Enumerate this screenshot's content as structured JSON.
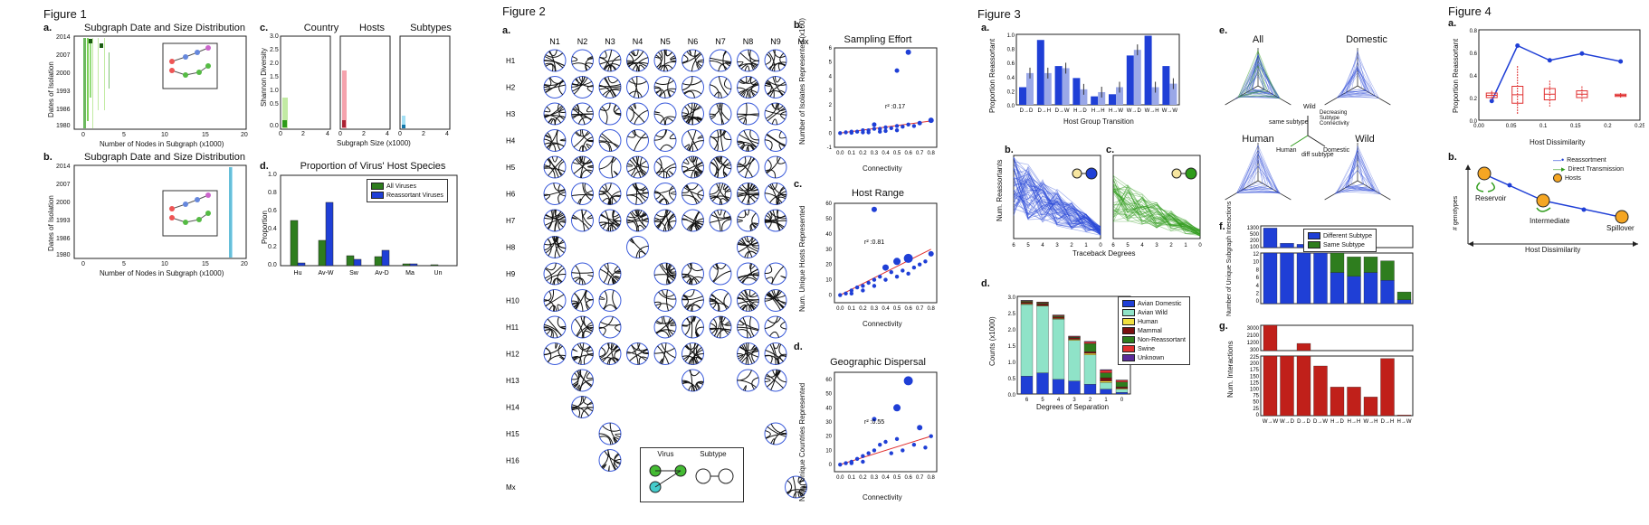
{
  "figures": {
    "f1": "Figure 1",
    "f2": "Figure 2",
    "f3": "Figure 3",
    "f4": "Figure 4"
  },
  "fig1": {
    "a": {
      "label": "a.",
      "title": "Subgraph Date and Size Distribution",
      "ylabel": "Dates of Isolation",
      "xlabel": "Number of Nodes in Subgraph (x1000)",
      "yticks": [
        "2014",
        "2007",
        "2000",
        "1993",
        "1986",
        "1980"
      ],
      "xticks": [
        "0",
        "5",
        "10",
        "15",
        "20"
      ]
    },
    "b": {
      "label": "b.",
      "title": "Subgraph Date and Size Distribution",
      "ylabel": "Dates of Isolation",
      "xlabel": "Number of Nodes in Subgraph (x1000)",
      "yticks": [
        "2014",
        "2007",
        "2000",
        "1993",
        "1986",
        "1980"
      ],
      "xticks": [
        "0",
        "5",
        "10",
        "15",
        "20"
      ]
    },
    "c": {
      "label": "c.",
      "titles": [
        "Country",
        "Hosts",
        "Subtypes"
      ],
      "ylabel": "Shannon Diversity",
      "xlabel": "Subgraph Size (x1000)",
      "yticks": [
        "3.0",
        "2.5",
        "2.0",
        "1.5",
        "1.0",
        "0.5",
        "0.0"
      ],
      "xticks": [
        "0",
        "2",
        "4"
      ]
    },
    "d": {
      "label": "d.",
      "title": "Proportion of Virus' Host Species",
      "ylabel": "Proportion",
      "yticks": [
        "1.0",
        "0.8",
        "0.6",
        "0.4",
        "0.2",
        "0.0"
      ],
      "legend": [
        "All Viruses",
        "Reassortant Viruses"
      ]
    }
  },
  "fig2": {
    "a": {
      "label": "a.",
      "cols": [
        "N1",
        "N2",
        "N3",
        "N4",
        "N5",
        "N6",
        "N7",
        "N8",
        "N9",
        "Mx"
      ],
      "rows": [
        "H1",
        "H2",
        "H3",
        "H4",
        "H5",
        "H6",
        "H7",
        "H8",
        "H9",
        "H10",
        "H11",
        "H12",
        "H13",
        "H14",
        "H15",
        "H16",
        "Mx"
      ],
      "legend": {
        "virus": "Virus",
        "subtype": "Subtype"
      }
    },
    "b": {
      "label": "b.",
      "title": "Sampling Effort",
      "ylabel": "Number of Isolates Represented (x100)",
      "xlabel": "Connectivity",
      "r2": "r² :0.17",
      "yticks": [
        "6",
        "5",
        "4",
        "3",
        "2",
        "1",
        "0",
        "-1"
      ]
    },
    "c": {
      "label": "c.",
      "title": "Host Range",
      "ylabel": "Num. Unique Hosts Represented",
      "xlabel": "Connectivity",
      "r2": "r² :0.81"
    },
    "d": {
      "label": "d.",
      "title": "Geographic Dispersal",
      "ylabel": "Num. Unique Countries Represented",
      "xlabel": "Connectivity",
      "r2": "r² :0.55"
    },
    "xticks": [
      "0.0",
      "0.1",
      "0.2",
      "0.3",
      "0.4",
      "0.5",
      "0.6",
      "0.7",
      "0.8"
    ]
  },
  "fig3": {
    "a": {
      "label": "a.",
      "ylabel": "Proportion Reassortant",
      "xlabel": "Host Group Transition",
      "yticks": [
        "1.0",
        "0.8",
        "0.6",
        "0.4",
        "0.2",
        "0.0"
      ],
      "cats": [
        "D→D",
        "D→H",
        "D→W",
        "H→D",
        "H→H",
        "H→W",
        "W→D",
        "W→H",
        "W→W"
      ]
    },
    "b": {
      "label": "b.",
      "ylabel": "Num. Reassortants",
      "xticks": [
        "6",
        "5",
        "4",
        "3",
        "2",
        "1",
        "0"
      ]
    },
    "c": {
      "label": "c.",
      "xticks": [
        "6",
        "5",
        "4",
        "3",
        "2",
        "1",
        "0"
      ]
    },
    "bc_xlabel": "Traceback Degrees",
    "d": {
      "label": "d.",
      "ylabel": "Counts (x1000)",
      "xlabel": "Degrees of Separation",
      "yticks": [
        "3.0",
        "2.5",
        "2.0",
        "1.5",
        "1.0",
        "0.5",
        "0.0"
      ],
      "legend": [
        "Avian Domestic",
        "Avian Wild",
        "Human",
        "Mammal",
        "Non-Reassortant",
        "Swine",
        "Unknown"
      ]
    },
    "e": {
      "label": "e.",
      "titles": [
        "All",
        "Domestic",
        "Human",
        "Wild"
      ],
      "axes": {
        "wild": "Wild",
        "human": "Human",
        "domestic": "Domestic",
        "same": "same subtype",
        "diff": "diff subtype",
        "decreasing": "Decreasing Subtype Connectivity"
      }
    },
    "f": {
      "label": "f.",
      "ylabel": "Number of Unique Subgraph Interactions",
      "legend": [
        "Different Subtype",
        "Same Subtype"
      ],
      "upper_ticks": [
        "1300",
        "500",
        "200",
        "100"
      ],
      "lower_ticks": [
        "12",
        "10",
        "8",
        "6",
        "4",
        "2",
        "0"
      ]
    },
    "g": {
      "label": "g.",
      "ylabel": "Num. Interactions",
      "upper_ticks": [
        "3000",
        "2100",
        "1200",
        "300"
      ],
      "lower_ticks": [
        "225",
        "200",
        "175",
        "150",
        "125",
        "100",
        "75",
        "50",
        "25",
        "0"
      ],
      "cats": [
        "W→W",
        "W→D",
        "D→D",
        "D→W",
        "H→D",
        "H→H",
        "W→H",
        "D→H",
        "H→W"
      ]
    }
  },
  "fig4": {
    "a": {
      "label": "a.",
      "ylabel": "Proportion Reassortant",
      "xlabel": "Host Dissimilarity",
      "yticks": [
        "0.8",
        "0.6",
        "0.4",
        "0.2",
        "0.0"
      ],
      "xticks": [
        "0.00",
        "0.05",
        "0.1",
        "0.15",
        "0.2",
        "0.25"
      ]
    },
    "b": {
      "label": "b.",
      "legend": [
        "Reassortment",
        "Direct Transmission",
        "Hosts"
      ],
      "nodes": [
        "Reservoir",
        "Intermediate",
        "Spillover"
      ],
      "ylabel": "# genotypes",
      "xlabel": "Host Dissimilarity"
    }
  },
  "colors": {
    "blue": "#1f3fd6",
    "green": "#2e7d1e",
    "red": "#d62020",
    "teal": "#8fe3c8",
    "lightblue": "#9aa8e8"
  }
}
